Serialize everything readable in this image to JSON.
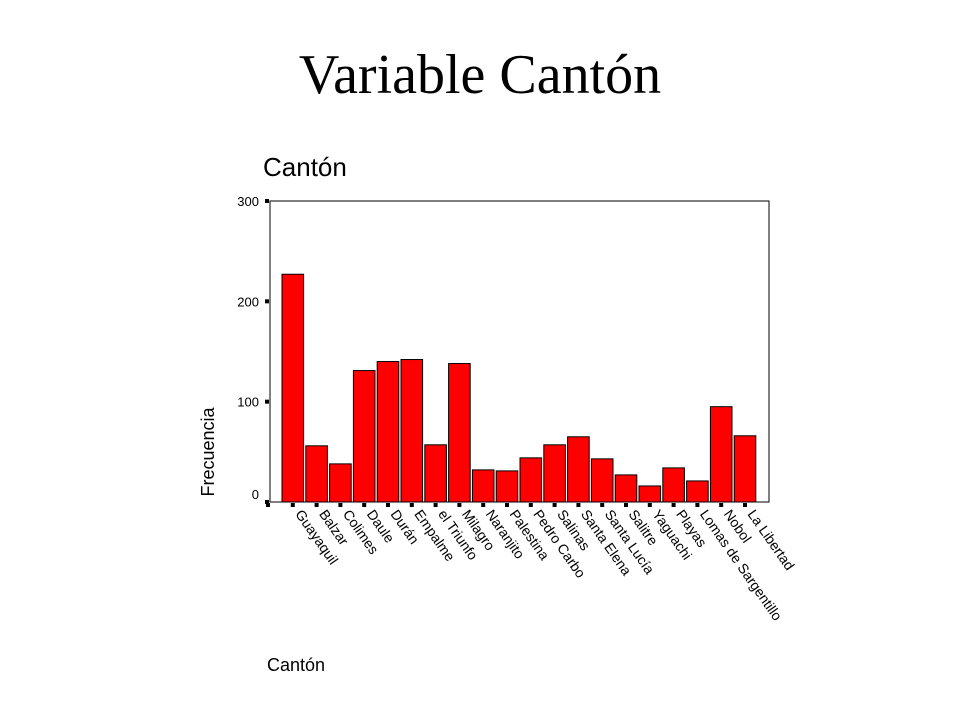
{
  "slide": {
    "title": "Variable Cantón"
  },
  "chart_data": {
    "type": "bar",
    "title": "Cantón",
    "xlabel": "Cantón",
    "ylabel": "Frecuencia",
    "categories": [
      "Guayaquil",
      "Balzar",
      "Colimes",
      "Daule",
      "Durán",
      "Empalme",
      "el Triunfo",
      "Milagro",
      "Naranjito",
      "Palestina",
      "Pedro Carbo",
      "Salinas",
      "Santa Elena",
      "Santa Lucía",
      "Salitre",
      "Yaguachi",
      "Playas",
      "Lomas de Sargentillo",
      "Nobol",
      "La Libertad"
    ],
    "values": [
      227,
      56,
      38,
      131,
      140,
      142,
      57,
      138,
      32,
      31,
      44,
      57,
      65,
      43,
      27,
      16,
      34,
      21,
      95,
      66
    ],
    "ylim": [
      0,
      300
    ],
    "yticks": [
      0,
      100,
      200,
      300
    ],
    "grid": false,
    "bar_color": "#ff0000",
    "bar_edge_color": "#000000"
  }
}
